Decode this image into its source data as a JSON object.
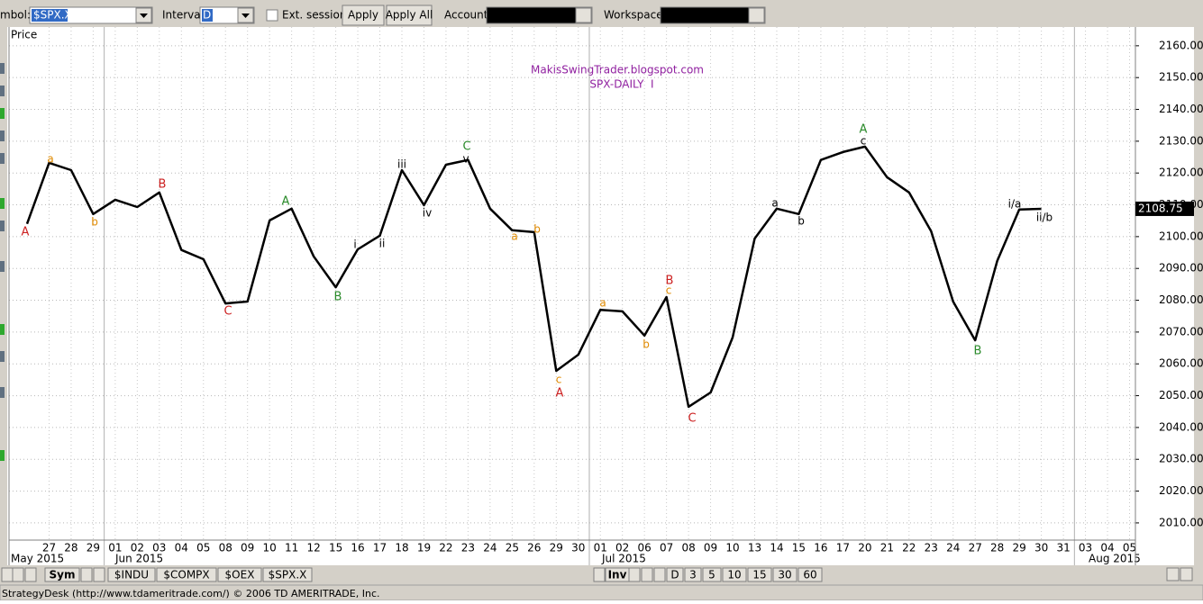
{
  "toolbar": {
    "symbol_label": "mbol:",
    "symbol": "$SPX.X",
    "interval_label": "Interval:",
    "interval": "D",
    "ext_session": "Ext. session",
    "apply": "Apply",
    "apply_all": "Apply All",
    "account_label": "Account:",
    "workspace_label": "Workspace:"
  },
  "chart_data": {
    "type": "line",
    "title": "MakisSwingTrader.blogspot.com",
    "subtitle": "SPX-DAILY  I",
    "y_label": "Price",
    "categories": [
      null,
      "27",
      "28",
      "29",
      "01",
      "02",
      "03",
      "04",
      "05",
      "08",
      "09",
      "10",
      "11",
      "12",
      "15",
      "16",
      "17",
      "18",
      "19",
      "22",
      "23",
      "24",
      "25",
      "26",
      "29",
      "30",
      "01",
      "02",
      "06",
      "07",
      "08",
      "09",
      "10",
      "13",
      "14",
      "15",
      "16",
      "17",
      "20",
      "21",
      "22",
      "23",
      "24",
      "27",
      "28",
      "29",
      "30",
      "31",
      "03",
      "04",
      "05"
    ],
    "months": [
      "May 2015",
      "Jun 2015",
      "Jul 2015",
      "Aug 2015"
    ],
    "values": [
      2104.0,
      2123.2,
      2120.9,
      2107.1,
      2111.6,
      2109.3,
      2113.9,
      2095.8,
      2092.9,
      2079.0,
      2079.6,
      2105.1,
      2108.8,
      2093.8,
      2084.1,
      2096.0,
      2100.3,
      2120.9,
      2109.9,
      2122.6,
      2124.1,
      2108.8,
      2102.0,
      2101.4,
      2057.8,
      2062.9,
      2077.0,
      2076.5,
      2068.9,
      2081.0,
      2046.5,
      2051.0,
      2068.3,
      2099.4,
      2108.8,
      2107.1,
      2124.1,
      2126.6,
      2128.3,
      2118.7,
      2113.9,
      2101.7,
      2079.6,
      2067.4,
      2092.4,
      2108.5,
      2108.75,
      null,
      null,
      null,
      null
    ],
    "color": "#000000",
    "ylim": [
      2004.6,
      2165.9
    ],
    "yticks": [
      {
        "value": 2010,
        "label": "2010.00"
      },
      {
        "value": 2020,
        "label": "2020.00"
      },
      {
        "value": 2030,
        "label": "2030.00"
      },
      {
        "value": 2040,
        "label": "2040.00"
      },
      {
        "value": 2050,
        "label": "2050.00"
      },
      {
        "value": 2060,
        "label": "2060.00"
      },
      {
        "value": 2070,
        "label": "2070.00"
      },
      {
        "value": 2080,
        "label": "2080.00"
      },
      {
        "value": 2090,
        "label": "2090.00"
      },
      {
        "value": 2100,
        "label": "2100.00"
      },
      {
        "value": 2110,
        "label": "2110.00"
      },
      {
        "value": 2120,
        "label": "2120.00"
      },
      {
        "value": 2130,
        "label": "2130.00"
      },
      {
        "value": 2140,
        "label": "2140.00"
      },
      {
        "value": 2150,
        "label": "2150.00"
      },
      {
        "value": 2160,
        "label": "2160.00"
      }
    ],
    "grid": true,
    "last_price": 2108.75,
    "annotations": [
      {
        "text": "A",
        "color": "#cc2020"
      },
      {
        "text": "a",
        "color": "#e08a00"
      },
      {
        "text": "b",
        "color": "#e08a00"
      },
      {
        "text": "B",
        "color": "#cc2020"
      },
      {
        "text": "C",
        "color": "#cc2020"
      },
      {
        "text": "A",
        "color": "#2a8a2a"
      },
      {
        "text": "B",
        "color": "#2a8a2a"
      },
      {
        "text": "i",
        "color": "#000000"
      },
      {
        "text": "ii",
        "color": "#000000"
      },
      {
        "text": "iii",
        "color": "#000000"
      },
      {
        "text": "iv",
        "color": "#000000"
      },
      {
        "text": "C",
        "color": "#2a8a2a"
      },
      {
        "text": "v",
        "color": "#000000"
      },
      {
        "text": "a",
        "color": "#e08a00"
      },
      {
        "text": "b",
        "color": "#e08a00"
      },
      {
        "text": "c",
        "color": "#e08a00"
      },
      {
        "text": "A",
        "color": "#cc2020"
      },
      {
        "text": "a",
        "color": "#e08a00"
      },
      {
        "text": "b",
        "color": "#e08a00"
      },
      {
        "text": "B",
        "color": "#cc2020"
      },
      {
        "text": "c",
        "color": "#e08a00"
      },
      {
        "text": "C",
        "color": "#cc2020"
      },
      {
        "text": "a",
        "color": "#000000"
      },
      {
        "text": "b",
        "color": "#000000"
      },
      {
        "text": "A",
        "color": "#2a8a2a"
      },
      {
        "text": "c",
        "color": "#000000"
      },
      {
        "text": "B",
        "color": "#2a8a2a"
      },
      {
        "text": "i/a",
        "color": "#000000"
      },
      {
        "text": "ii/b",
        "color": "#000000"
      }
    ],
    "title_color": "#9020a0"
  },
  "tabs": {
    "sym": "Sym",
    "symbols": [
      "$INDU",
      "$COMPX",
      "$OEX",
      "$SPX.X"
    ],
    "inv": "Inv",
    "intervals": [
      "D",
      "3",
      "5",
      "10",
      "15",
      "30",
      "60"
    ]
  },
  "status": "StrategyDesk (http://www.tdameritrade.com/) © 2006 TD AMERITRADE, Inc."
}
